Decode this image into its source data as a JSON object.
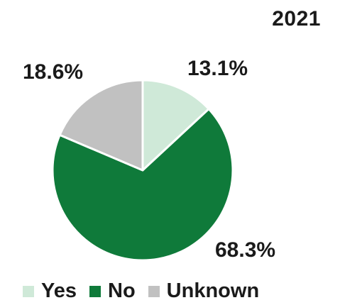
{
  "chart_data": {
    "type": "pie",
    "title": "2021",
    "categories": [
      "Yes",
      "No",
      "Unknown"
    ],
    "values": [
      13.1,
      68.3,
      18.6
    ],
    "value_labels": [
      "13.1%",
      "68.3%",
      "18.6%"
    ],
    "colors": [
      "#cfe9d8",
      "#0f7a3a",
      "#c1c1c1"
    ],
    "start_angle_deg": 0,
    "direction": "clockwise",
    "legend_position": "bottom"
  }
}
